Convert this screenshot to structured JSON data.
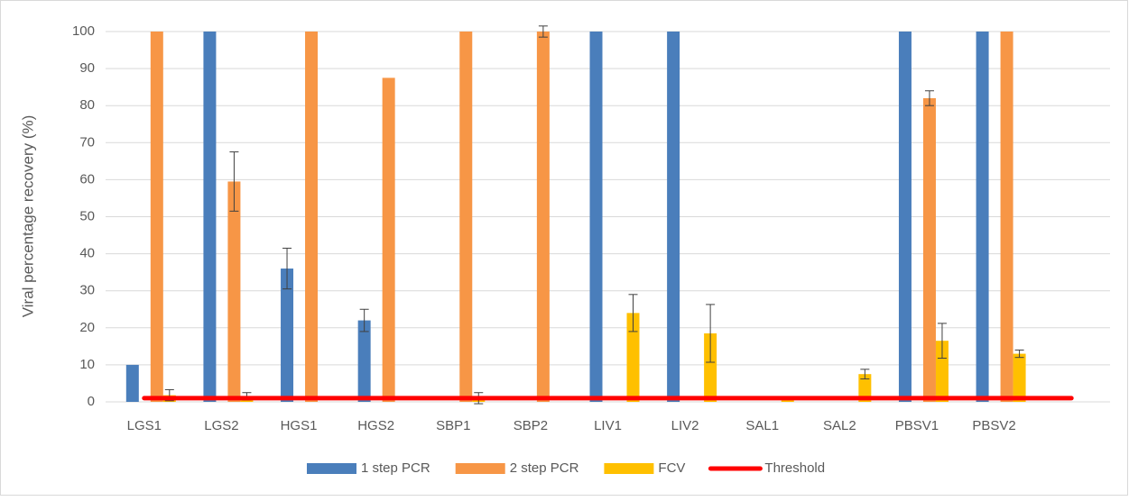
{
  "chart_data": {
    "type": "bar",
    "y_label": "Viral percentage recovery (%)",
    "categories": [
      "LGS1",
      "LGS2",
      "HGS1",
      "HGS2",
      "SBP1",
      "SBP2",
      "LIV1",
      "LIV2",
      "SAL1",
      "SAL2",
      "PBSV1",
      "PBSV2",
      null
    ],
    "series": [
      {
        "name": "1 step PCR",
        "color": "#4a7ebb",
        "values": [
          10,
          100,
          36,
          22,
          0,
          0,
          100,
          100,
          0,
          0,
          100,
          100,
          null
        ],
        "errors": [
          null,
          null,
          5.5,
          3,
          null,
          null,
          null,
          null,
          null,
          null,
          null,
          null,
          null
        ]
      },
      {
        "name": "2 step PCR",
        "color": "#f79646",
        "values": [
          100,
          59.5,
          100,
          87.5,
          100,
          100,
          0,
          0,
          0,
          0,
          82,
          100,
          null
        ],
        "errors": [
          null,
          8,
          null,
          null,
          null,
          1.5,
          null,
          null,
          null,
          null,
          2,
          null,
          null
        ]
      },
      {
        "name": "FCV",
        "color": "#ffc000",
        "values": [
          1.8,
          1.5,
          0,
          0,
          1,
          0,
          24,
          18.5,
          0.5,
          7.5,
          16.5,
          13,
          null
        ],
        "errors": [
          1.5,
          1,
          null,
          null,
          1.5,
          null,
          5,
          7.8,
          null,
          1.3,
          4.7,
          1,
          null
        ]
      },
      {
        "name": "Threshold",
        "color": "#ff0000",
        "type": "line",
        "values": [
          1,
          1,
          1,
          1,
          1,
          1,
          1,
          1,
          1,
          1,
          1,
          1,
          1
        ]
      }
    ],
    "ylim": [
      0,
      100
    ],
    "yticks": [
      0,
      10,
      20,
      30,
      40,
      50,
      60,
      70,
      80,
      90,
      100
    ],
    "grid": true,
    "legend": "bottom"
  }
}
